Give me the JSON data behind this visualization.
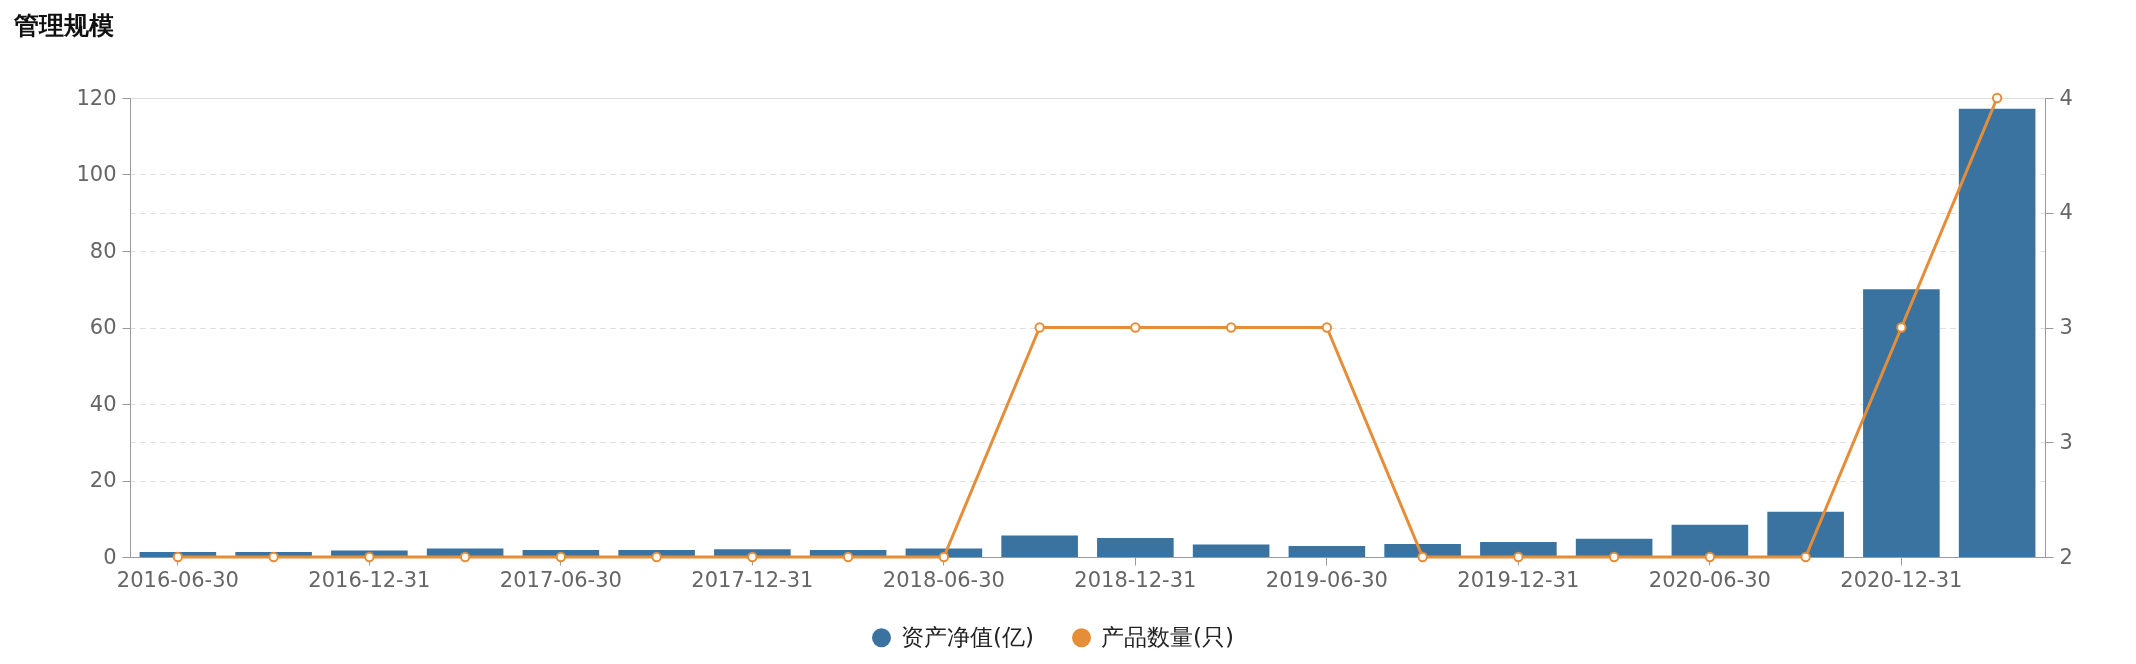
{
  "chart_data": {
    "type": "bar",
    "title": "管理规模",
    "categories": [
      "2016-06-30",
      null,
      "2016-12-31",
      null,
      "2017-06-30",
      null,
      "2017-12-31",
      null,
      "2018-06-30",
      null,
      "2018-12-31",
      null,
      "2019-06-30",
      null,
      "2019-12-31",
      null,
      "2020-06-30",
      null,
      "2020-12-31",
      null
    ],
    "series": [
      {
        "name": "资产净值(亿)",
        "color": "#3b73a0",
        "values": [
          1.3,
          1.3,
          1.7,
          2.2,
          1.8,
          1.8,
          2.0,
          1.8,
          2.2,
          5.6,
          5.0,
          3.3,
          2.9,
          3.4,
          3.9,
          4.8,
          8.4,
          11.8,
          70,
          117.2
        ]
      },
      {
        "name": "产品数量(只)",
        "type": "line",
        "axis": "y2",
        "color": "#e68d38",
        "values": [
          2,
          2,
          2,
          2,
          2,
          2,
          2,
          2,
          2,
          3,
          3,
          3,
          3,
          2,
          2,
          2,
          2,
          2,
          3,
          4
        ]
      }
    ],
    "ylim": [
      0,
      120
    ],
    "yticks": [
      0,
      20,
      40,
      60,
      80,
      100,
      120
    ],
    "y2lim": [
      2,
      4
    ],
    "y2ticks": [
      2,
      {
        "value": 2.5,
        "label": "3"
      },
      3,
      {
        "value": 3.5,
        "label": "4"
      },
      4
    ],
    "grid": "y",
    "legend": "bottom",
    "marker": "circle"
  }
}
